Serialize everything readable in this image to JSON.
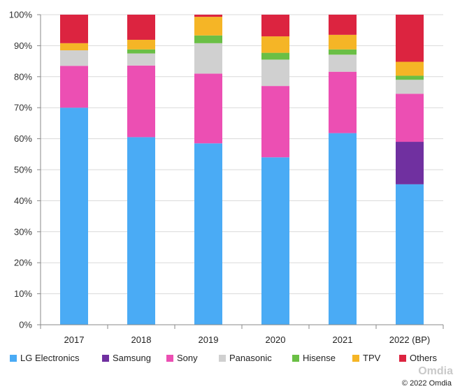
{
  "chart_data": {
    "type": "bar",
    "stacked": true,
    "categories": [
      "2017",
      "2018",
      "2019",
      "2020",
      "2021",
      "2022 (BP)"
    ],
    "series": [
      {
        "name": "LG Electronics",
        "color": "#4aabf5",
        "values": [
          70,
          60.5,
          58.5,
          54,
          61.8,
          45.3
        ]
      },
      {
        "name": "Samsung",
        "color": "#7030a0",
        "values": [
          0,
          0,
          0,
          0,
          0,
          13.7
        ]
      },
      {
        "name": "Sony",
        "color": "#ec4fb3",
        "values": [
          13.5,
          23.1,
          22.5,
          23,
          19.8,
          15.5
        ]
      },
      {
        "name": "Panasonic",
        "color": "#d0d0d0",
        "values": [
          5,
          3.9,
          9.8,
          8.5,
          5.5,
          4.5
        ]
      },
      {
        "name": "Hisense",
        "color": "#6abf45",
        "values": [
          0,
          1.3,
          2.5,
          2.2,
          1.7,
          1.3
        ]
      },
      {
        "name": "TPV",
        "color": "#f5b526",
        "values": [
          2.3,
          3.1,
          6,
          5.3,
          4.7,
          4.5
        ]
      },
      {
        "name": "Others",
        "color": "#dc2440",
        "values": [
          9.2,
          8.1,
          0.7,
          7,
          6.5,
          15.2
        ]
      }
    ],
    "yticks": [
      "0%",
      "10%",
      "20%",
      "30%",
      "40%",
      "50%",
      "60%",
      "70%",
      "80%",
      "90%",
      "100%"
    ],
    "ylim": [
      0,
      100
    ],
    "grid": true,
    "legend": "bottom"
  },
  "watermark": "Omdia",
  "copyright": "© 2022 Omdia"
}
